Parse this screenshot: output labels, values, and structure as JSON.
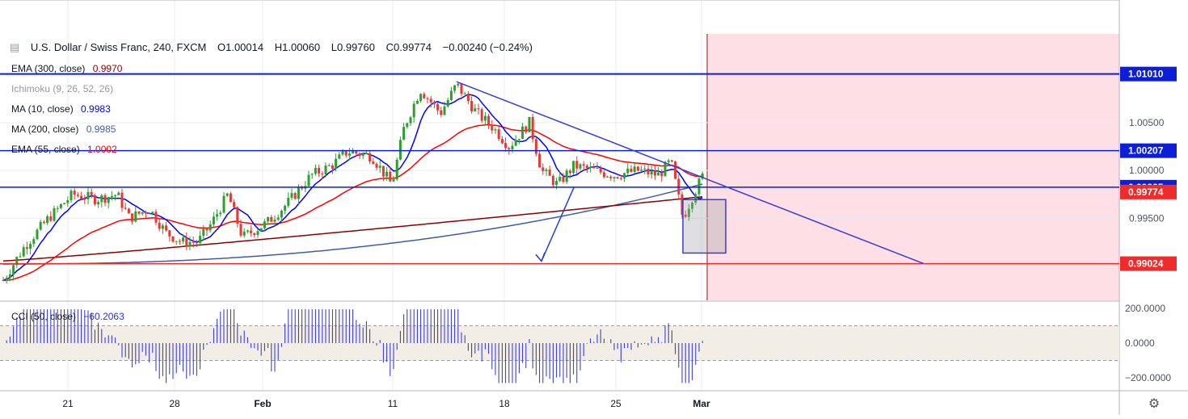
{
  "header": {
    "symbol": "U.S. Dollar / Swiss Franc, 240, FXCM",
    "open": "O1.00014",
    "high": "H1.00060",
    "low": "L0.99760",
    "close": "C0.99774",
    "change": "−0.00240 (−0.24%)"
  },
  "indicators": [
    {
      "label": "EMA (300, close)",
      "value": "0.9970",
      "color": "#8b0000"
    },
    {
      "label": "Ichimoku (9, 26, 52, 26)",
      "value": "",
      "color": "#9598a1"
    },
    {
      "label": "MA (10, close)",
      "value": "0.9983",
      "color": "#0000ff"
    },
    {
      "label": "MA (200, close)",
      "value": "0.9985",
      "color": "#3d5ca8"
    },
    {
      "label": "EMA (55, close)",
      "value": "1.0002",
      "color": "#ff0000"
    }
  ],
  "cci": {
    "label": "CCI (50, close)",
    "value": "−60.2063"
  },
  "price_axis": {
    "ticks": [
      "1.00500",
      "1.00000",
      "0.99500"
    ],
    "tags": [
      {
        "label": "1.01010",
        "value": 1.0101,
        "color": "#0d1fd6"
      },
      {
        "label": "1.00207",
        "value": 1.00207,
        "color": "#0d1fd6"
      },
      {
        "label": "0.99825",
        "value": 0.99825,
        "color": "#0d1fd6"
      },
      {
        "label": "0.99774",
        "value": 0.99774,
        "color": "#ef2b2b"
      },
      {
        "label": "0.99024",
        "value": 0.99024,
        "color": "#ef2b2b"
      }
    ]
  },
  "cci_axis": {
    "ticks": [
      "200.0000",
      "0.0000",
      "−200.0000"
    ]
  },
  "time_axis": {
    "labels": [
      "21",
      "28",
      "Feb",
      "11",
      "18",
      "25",
      "Mar"
    ]
  },
  "icons": {
    "settings": "gear-icon"
  },
  "chart_data": [
    {
      "type": "candlestick",
      "title": "U.S. Dollar / Swiss Franc, 240, FXCM",
      "ylim": [
        0.9864,
        1.0143
      ],
      "x": [
        "Jan 21",
        "Jan 28",
        "Feb 4",
        "Feb 11",
        "Feb 18",
        "Feb 25",
        "Mar 1"
      ],
      "horizontal_levels": [
        1.0101,
        1.00207,
        0.99825,
        0.99024
      ],
      "series": [
        {
          "name": "EMA (300, close)",
          "last": 0.997
        },
        {
          "name": "MA (10, close)",
          "last": 0.9983
        },
        {
          "name": "MA (200, close)",
          "last": 0.9985
        },
        {
          "name": "EMA (55, close)",
          "last": 1.0002
        }
      ],
      "last_price": 0.99774,
      "trendline": "descending from ~1.0093 (Feb 14) toward 0.9902"
    },
    {
      "type": "bar",
      "title": "CCI (50, close)",
      "ylim": [
        -250,
        200
      ],
      "last": -60.2063,
      "bands": [
        100,
        -100
      ]
    }
  ],
  "colors": {
    "grid": "#e9ecf1",
    "bull": "#2ca02c",
    "bear": "#e53935",
    "target_zone": "#fddfe5",
    "cci_band": "#f2eee6",
    "cci_bars": "#2f2fd6"
  }
}
